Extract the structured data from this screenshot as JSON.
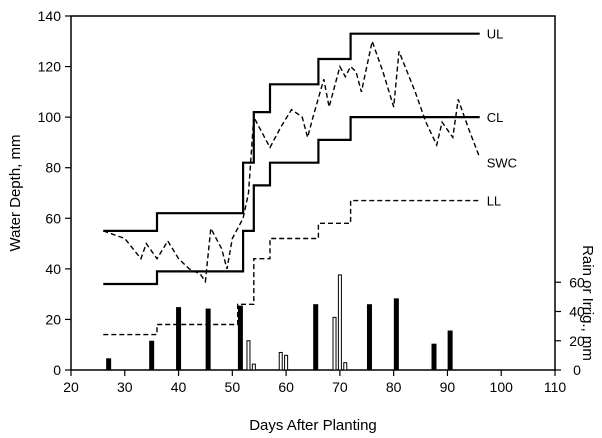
{
  "chart_data": {
    "type": "line",
    "xlabel": "Days After Planting",
    "ylabel": "Water Depth, mm",
    "y2label": "Rain or Irrig., mm",
    "xlim": [
      20,
      110
    ],
    "ylim": [
      0,
      140
    ],
    "y2lim": [
      0,
      80
    ],
    "x_ticks": [
      20,
      30,
      40,
      50,
      60,
      70,
      80,
      90,
      100,
      110
    ],
    "y_ticks": [
      0,
      20,
      40,
      60,
      80,
      100,
      120,
      140
    ],
    "y2_ticks": [
      0,
      20,
      40,
      60
    ],
    "series": [
      {
        "name": "UL",
        "style": "solid",
        "points": [
          [
            26,
            55
          ],
          [
            36,
            55
          ],
          [
            36,
            62
          ],
          [
            52,
            62
          ],
          [
            52,
            82
          ],
          [
            54,
            82
          ],
          [
            54,
            102
          ],
          [
            57,
            102
          ],
          [
            57,
            113
          ],
          [
            66,
            113
          ],
          [
            66,
            123
          ],
          [
            72,
            123
          ],
          [
            72,
            133
          ],
          [
            96,
            133
          ]
        ]
      },
      {
        "name": "CL",
        "style": "solid",
        "points": [
          [
            26,
            34
          ],
          [
            36,
            34
          ],
          [
            36,
            39
          ],
          [
            52,
            39
          ],
          [
            52,
            55
          ],
          [
            54,
            55
          ],
          [
            54,
            73
          ],
          [
            57,
            73
          ],
          [
            57,
            82
          ],
          [
            66,
            82
          ],
          [
            66,
            91
          ],
          [
            72,
            91
          ],
          [
            72,
            100
          ],
          [
            96,
            100
          ]
        ]
      },
      {
        "name": "LL",
        "style": "dashed",
        "points": [
          [
            26,
            14
          ],
          [
            36,
            14
          ],
          [
            36,
            18
          ],
          [
            51,
            18
          ],
          [
            51,
            26
          ],
          [
            54,
            26
          ],
          [
            54,
            44
          ],
          [
            57,
            44
          ],
          [
            57,
            52
          ],
          [
            66,
            52
          ],
          [
            66,
            58
          ],
          [
            72,
            58
          ],
          [
            72,
            67
          ],
          [
            96,
            67
          ]
        ]
      },
      {
        "name": "SWC",
        "style": "dashed",
        "points": [
          [
            26,
            55
          ],
          [
            30,
            52
          ],
          [
            33,
            44
          ],
          [
            34,
            50
          ],
          [
            36,
            44
          ],
          [
            38,
            51
          ],
          [
            40,
            44
          ],
          [
            42,
            40
          ],
          [
            44,
            38
          ],
          [
            45,
            35
          ],
          [
            46,
            56
          ],
          [
            48,
            48
          ],
          [
            49,
            40
          ],
          [
            50,
            52
          ],
          [
            52,
            60
          ],
          [
            53,
            70
          ],
          [
            54,
            100
          ],
          [
            56,
            92
          ],
          [
            57,
            88
          ],
          [
            59,
            96
          ],
          [
            61,
            103
          ],
          [
            63,
            100
          ],
          [
            64,
            92
          ],
          [
            65,
            100
          ],
          [
            67,
            115
          ],
          [
            68,
            104
          ],
          [
            70,
            120
          ],
          [
            71,
            116
          ],
          [
            72,
            120
          ],
          [
            73,
            118
          ],
          [
            74,
            110
          ],
          [
            76,
            130
          ],
          [
            78,
            118
          ],
          [
            80,
            104
          ],
          [
            81,
            126
          ],
          [
            84,
            110
          ],
          [
            86,
            98
          ],
          [
            88,
            89
          ],
          [
            89,
            98
          ],
          [
            91,
            92
          ],
          [
            92,
            107
          ],
          [
            94,
            95
          ],
          [
            96,
            84
          ]
        ]
      }
    ],
    "rain_irrig_bars": [
      {
        "day": 27,
        "value": 8,
        "kind": "rain"
      },
      {
        "day": 35,
        "value": 20,
        "kind": "rain"
      },
      {
        "day": 40,
        "value": 43,
        "kind": "rain"
      },
      {
        "day": 45.5,
        "value": 42,
        "kind": "rain"
      },
      {
        "day": 51.5,
        "value": 44,
        "kind": "rain"
      },
      {
        "day": 53,
        "value": 20,
        "kind": "irrigation"
      },
      {
        "day": 54,
        "value": 4,
        "kind": "irrigation"
      },
      {
        "day": 59,
        "value": 12,
        "kind": "irrigation"
      },
      {
        "day": 60,
        "value": 10,
        "kind": "irrigation"
      },
      {
        "day": 65.5,
        "value": 45,
        "kind": "rain"
      },
      {
        "day": 69,
        "value": 36,
        "kind": "irrigation"
      },
      {
        "day": 70,
        "value": 65,
        "kind": "irrigation"
      },
      {
        "day": 71,
        "value": 5,
        "kind": "irrigation"
      },
      {
        "day": 75.5,
        "value": 45,
        "kind": "rain"
      },
      {
        "day": 80.5,
        "value": 49,
        "kind": "rain"
      },
      {
        "day": 87.5,
        "value": 18,
        "kind": "rain"
      },
      {
        "day": 90.5,
        "value": 27,
        "kind": "rain"
      }
    ]
  }
}
